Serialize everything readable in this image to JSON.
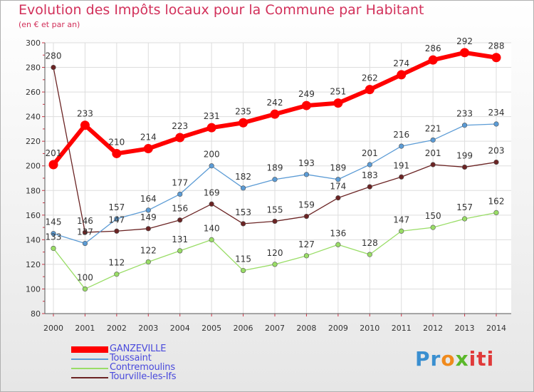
{
  "chart_data": {
    "type": "line",
    "title": "Evolution des Impôts locaux pour la Commune par Habitant",
    "subtitle": "(en € et par an)",
    "x": [
      2000,
      2001,
      2002,
      2003,
      2004,
      2005,
      2006,
      2007,
      2008,
      2009,
      2010,
      2011,
      2012,
      2013,
      2014
    ],
    "ylim": [
      80,
      300
    ],
    "yticks": [
      80,
      100,
      120,
      140,
      160,
      180,
      200,
      220,
      240,
      260,
      280,
      300
    ],
    "grid": true,
    "legend_position": "bottom-left",
    "series": [
      {
        "name": "GANZEVILLE",
        "color": "#ff0000",
        "values": [
          201,
          233,
          210,
          214,
          223,
          231,
          235,
          242,
          249,
          251,
          262,
          274,
          286,
          292,
          288
        ]
      },
      {
        "name": "Toussaint",
        "color": "#5b9bd5",
        "values": [
          145,
          137,
          157,
          164,
          177,
          200,
          182,
          189,
          193,
          189,
          201,
          216,
          221,
          233,
          234
        ]
      },
      {
        "name": "Contremoulins",
        "color": "#99dd66",
        "values": [
          133,
          100,
          112,
          122,
          131,
          140,
          115,
          120,
          127,
          136,
          128,
          147,
          150,
          157,
          162
        ]
      },
      {
        "name": "Tourville-les-Ifs",
        "color": "#6b2424",
        "values": [
          280,
          146,
          147,
          149,
          156,
          169,
          153,
          155,
          159,
          174,
          183,
          191,
          201,
          199,
          203
        ]
      }
    ]
  },
  "logo": {
    "p1": "Pr",
    "p2": "o",
    "p3": "x",
    "p4": "iti"
  }
}
